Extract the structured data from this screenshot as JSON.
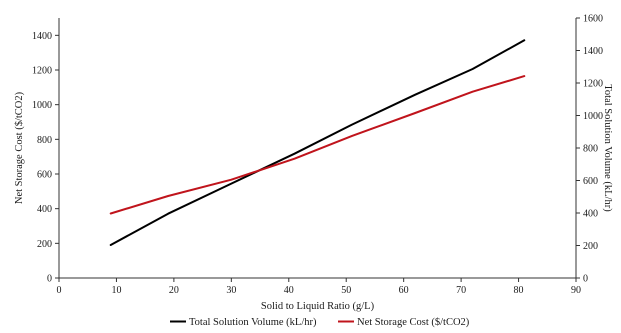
{
  "chart_data": {
    "type": "line",
    "xlabel": "Solid to Liquid Ratio (g/L)",
    "ylabel_left": "Net Storage Cost ($/tCO2)",
    "ylabel_right": "Total Solution Volume (kL/hr)",
    "xlim": [
      0,
      90
    ],
    "xticks": [
      "0",
      "10",
      "20",
      "30",
      "40",
      "50",
      "60",
      "70",
      "80",
      "90"
    ],
    "ylim_left": [
      0,
      1500
    ],
    "yticks_left": [
      "0",
      "200",
      "400",
      "600",
      "800",
      "1000",
      "1200",
      "1400"
    ],
    "ylim_right": [
      0,
      1600
    ],
    "yticks_right": [
      "0",
      "200",
      "400",
      "600",
      "800",
      "1000",
      "1200",
      "1400",
      "1600"
    ],
    "grid": false,
    "legend_position": "bottom",
    "series": [
      {
        "name": "Total Solution Volume (kL/hr)",
        "axis": "right",
        "color": "#000000",
        "x": [
          9,
          19,
          30,
          41,
          51,
          62,
          72,
          81
        ],
        "values": [
          203,
          396,
          581,
          765,
          944,
          1128,
          1286,
          1463
        ]
      },
      {
        "name": "Net Storage Cost ($/tCO2)",
        "axis": "left",
        "color": "#c0141c",
        "x": [
          9,
          19,
          30,
          41,
          51,
          62,
          72,
          81
        ],
        "values": [
          372,
          473,
          567,
          688,
          820,
          952,
          1075,
          1165
        ]
      }
    ]
  }
}
